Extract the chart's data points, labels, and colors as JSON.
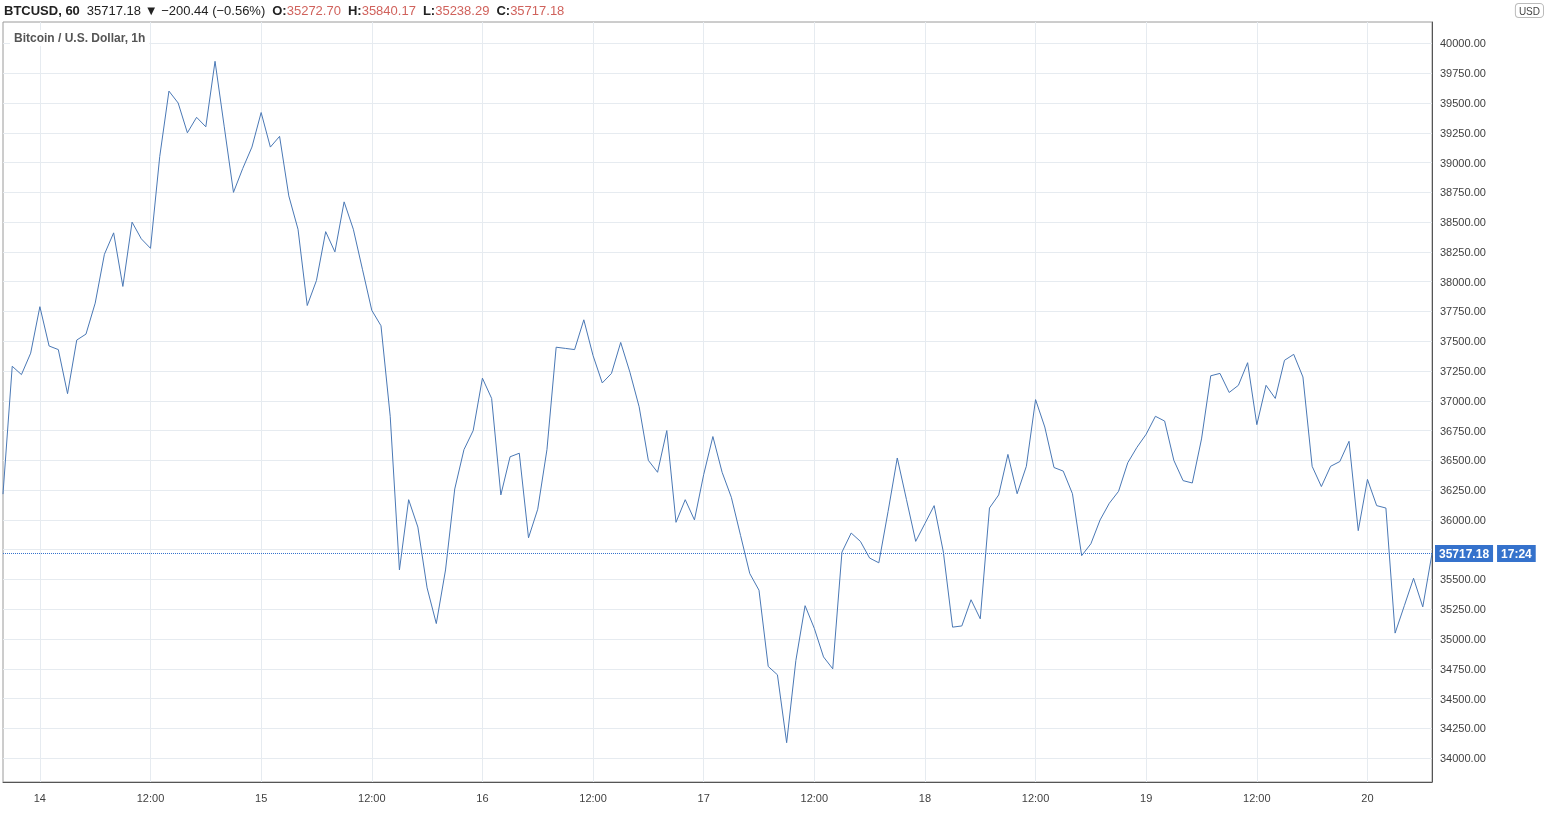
{
  "chart_data": {
    "type": "line",
    "title": "BTCUSD, 60",
    "subtitle": "Bitcoin / U.S. Dollar, 1h",
    "annotations": [
      "35717.18 ▼ −200.44 (−0.56%)",
      "O:35272.70",
      "H:35840.17",
      "L:35238.29",
      "C:35717.18",
      "USD",
      "17:24"
    ],
    "categories": [
      null,
      null,
      null,
      null,
      "14",
      null,
      null,
      null,
      null,
      null,
      null,
      null,
      null,
      null,
      null,
      null,
      "12:00",
      null,
      null,
      null,
      null,
      null,
      null,
      null,
      null,
      null,
      null,
      null,
      "15",
      null,
      null,
      null,
      null,
      null,
      null,
      null,
      null,
      null,
      null,
      null,
      "12:00",
      null,
      null,
      null,
      null,
      null,
      null,
      null,
      null,
      null,
      null,
      null,
      "16",
      null,
      null,
      null,
      null,
      null,
      null,
      null,
      null,
      null,
      null,
      null,
      "12:00",
      null,
      null,
      null,
      null,
      null,
      null,
      null,
      null,
      null,
      null,
      null,
      "17",
      null,
      null,
      null,
      null,
      null,
      null,
      null,
      null,
      null,
      null,
      null,
      "12:00",
      null,
      null,
      null,
      null,
      null,
      null,
      null,
      null,
      null,
      null,
      null,
      "18",
      null,
      null,
      null,
      null,
      null,
      null,
      null,
      null,
      null,
      null,
      null,
      "12:00",
      null,
      null,
      null,
      null,
      null,
      null,
      null,
      null,
      null,
      null,
      null,
      "19",
      null,
      null,
      null,
      null,
      null,
      null,
      null,
      null,
      null,
      null,
      null,
      "12:00",
      null,
      null,
      null,
      null,
      null,
      null,
      null,
      null,
      null,
      null,
      null,
      "20",
      null,
      null,
      null,
      null,
      null,
      null,
      null
    ],
    "values": [
      36220,
      37290,
      37220,
      37400,
      37790,
      37460,
      37430,
      37060,
      37510,
      37560,
      37820,
      38230,
      38410,
      37960,
      38500,
      38360,
      38280,
      39050,
      39600,
      39500,
      39250,
      39380,
      39300,
      39850,
      39300,
      38750,
      38950,
      39130,
      39420,
      39130,
      39220,
      38720,
      38440,
      37800,
      38010,
      38420,
      38250,
      38670,
      38440,
      38100,
      37760,
      37630,
      36870,
      35580,
      36170,
      35940,
      35430,
      35130,
      35580,
      36260,
      36590,
      36750,
      37190,
      37020,
      36210,
      36530,
      36560,
      35850,
      36090,
      36590,
      37450,
      37440,
      37430,
      37680,
      37380,
      37150,
      37230,
      37490,
      37240,
      36950,
      36500,
      36400,
      36750,
      35980,
      36170,
      36000,
      36380,
      36700,
      36400,
      36190,
      35870,
      35550,
      35410,
      34770,
      34700,
      34130,
      34820,
      35280,
      35090,
      34850,
      34750,
      35730,
      35890,
      35820,
      35680,
      35640,
      36070,
      36520,
      36170,
      35820,
      35970,
      36120,
      35730,
      35100,
      35110,
      35330,
      35170,
      36100,
      36210,
      36550,
      36220,
      36450,
      37010,
      36780,
      36440,
      36410,
      36220,
      35700,
      35800,
      36000,
      36140,
      36240,
      36480,
      36610,
      36720,
      36870,
      36830,
      36500,
      36330,
      36310,
      36680,
      37210,
      37230,
      37070,
      37130,
      37320,
      36800,
      37130,
      37020,
      37340,
      37390,
      37200,
      36450,
      36280,
      36450,
      36490,
      36660,
      35910,
      36340,
      36120,
      36100,
      35050,
      35280,
      35510,
      35270,
      35717.18
    ],
    "color": "#4a78b5",
    "ylim": [
      33800,
      40180
    ],
    "yticks": [
      {
        "value": 34000,
        "label": "34000.00"
      },
      {
        "value": 34250,
        "label": "34250.00"
      },
      {
        "value": 34500,
        "label": "34500.00"
      },
      {
        "value": 34750,
        "label": "34750.00"
      },
      {
        "value": 35000,
        "label": "35000.00"
      },
      {
        "value": 35250,
        "label": "35250.00"
      },
      {
        "value": 35500,
        "label": "35500.00"
      },
      {
        "value": 35750,
        "label": null
      },
      {
        "value": 36000,
        "label": "36000.00"
      },
      {
        "value": 36250,
        "label": "36250.00"
      },
      {
        "value": 36500,
        "label": "36500.00"
      },
      {
        "value": 36750,
        "label": "36750.00"
      },
      {
        "value": 37000,
        "label": "37000.00"
      },
      {
        "value": 37250,
        "label": "37250.00"
      },
      {
        "value": 37500,
        "label": "37500.00"
      },
      {
        "value": 37750,
        "label": "37750.00"
      },
      {
        "value": 38000,
        "label": "38000.00"
      },
      {
        "value": 38250,
        "label": "38250.00"
      },
      {
        "value": 38500,
        "label": "38500.00"
      },
      {
        "value": 38750,
        "label": "38750.00"
      },
      {
        "value": 39000,
        "label": "39000.00"
      },
      {
        "value": 39250,
        "label": "39250.00"
      },
      {
        "value": 39500,
        "label": "39500.00"
      },
      {
        "value": 39750,
        "label": "39750.00"
      },
      {
        "value": 40000,
        "label": "40000.00"
      }
    ],
    "grid": true,
    "line_style": "solid",
    "ref_lines": [
      {
        "axis": "y",
        "value": 35717.18,
        "label": "35717.18",
        "color": "#3572cc",
        "line_style": "dotted"
      }
    ]
  }
}
